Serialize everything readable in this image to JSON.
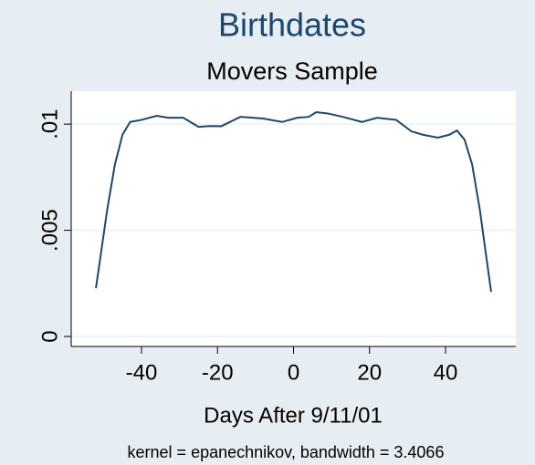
{
  "chart_data": {
    "type": "line",
    "title": "Birthdates",
    "subtitle": "Movers Sample",
    "x_label": "Days After 9/11/01",
    "note": "kernel = epanechnikov, bandwidth = 3.4066",
    "x": [
      -52,
      -49,
      -47,
      -45,
      -43,
      -40,
      -36,
      -33,
      -29,
      -25,
      -22,
      -19,
      -14,
      -8,
      -3,
      1,
      4,
      6,
      9,
      13,
      18,
      22,
      27,
      31,
      34,
      38,
      41,
      43,
      45,
      47,
      49,
      52
    ],
    "series": [
      {
        "color": "#1a476f",
        "values": [
          0.00227,
          0.006,
          0.0081,
          0.0095,
          0.0101,
          0.0102,
          0.01039,
          0.0103,
          0.0103,
          0.00987,
          0.00991,
          0.0099,
          0.01034,
          0.01026,
          0.0101,
          0.0103,
          0.01034,
          0.01056,
          0.0105,
          0.01034,
          0.0101,
          0.0103,
          0.0102,
          0.00966,
          0.0095,
          0.00936,
          0.0095,
          0.0097,
          0.00927,
          0.0081,
          0.006,
          0.0021
        ]
      }
    ],
    "xlim": [
      -58.5,
      58.5
    ],
    "xticks": [
      -40,
      -20,
      0,
      20,
      40
    ],
    "ylim": [
      -0.00047,
      0.01155
    ],
    "yticks": [
      0,
      {
        "value": 0.005,
        "label": ".005"
      },
      {
        "value": 0.01,
        "label": ".01"
      }
    ],
    "grid": true
  }
}
